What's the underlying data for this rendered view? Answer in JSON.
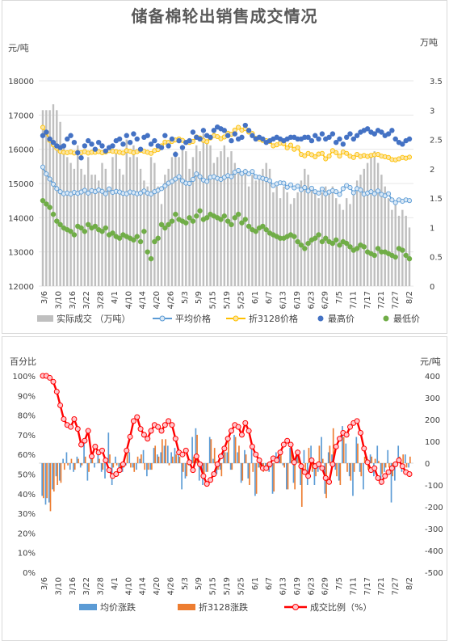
{
  "title": "储备棉轮出销售成交情况",
  "colors": {
    "volume": "#bfbfbf",
    "avg_price": "#5b9bd5",
    "avg_price_fill": "#dbe9f6",
    "adj_price": "#ffc000",
    "adj_price_fill": "#fbe5a6",
    "high": "#4472c4",
    "low": "#70ad47",
    "avg_change": "#5b9bd5",
    "adj_change": "#ed7d31",
    "ratio": "#ff0000",
    "ratio_fill": "#ffc7ce"
  },
  "chart_data": [
    {
      "type": "bar+line+scatter",
      "ylabel": "元/吨",
      "y2label": "万吨",
      "ylim": [
        12000,
        18000
      ],
      "y2lim": [
        0,
        3.5
      ],
      "yticks": [
        "12000",
        "13000",
        "14000",
        "15000",
        "16000",
        "17000",
        "18000"
      ],
      "y2ticks": [
        "0",
        "0.5",
        "1",
        "1.5",
        "2",
        "2.5",
        "3",
        "3.5"
      ],
      "xticks": [
        "3/6",
        "3/10",
        "3/16",
        "3/22",
        "3/28",
        "4/1",
        "4/10",
        "4/14",
        "4/20",
        "4/26",
        "5/3",
        "5/9",
        "5/15",
        "5/19",
        "5/25",
        "6/1",
        "6/7",
        "6/13",
        "6/19",
        "6/23",
        "6/29",
        "7/5",
        "7/11",
        "7/17",
        "7/21",
        "7/27",
        "8/2"
      ],
      "legend": [
        "实际成交 （万吨）",
        "平均价格",
        "折3128价格",
        "最高价",
        "最低价"
      ],
      "series": [
        {
          "name": "实际成交 （万吨）",
          "axis": "y2",
          "values": [
            3,
            3,
            3,
            3.1,
            3,
            2.8,
            2.4,
            2.2,
            2.1,
            2.0,
            2.4,
            2.0,
            1.9,
            2.2,
            1.9,
            1.9,
            1.8,
            2.1,
            2.0,
            1.7,
            2.2,
            2.3,
            2.0,
            1.9,
            2.5,
            2.2,
            2.4,
            2.2,
            2.0,
            1.8,
            1.7,
            2.2,
            2.1,
            1.7,
            1.4,
            1.9,
            2.0,
            2.2,
            2.3,
            2.2,
            2.4,
            2.3,
            2.0,
            2.2,
            2.4,
            2.3,
            2.6,
            2.5,
            2.4,
            2.1,
            2.2,
            2.3,
            2.4,
            2.2,
            2.3,
            2.1,
            2.0,
            1.9,
            2.0,
            1.7,
            1.9,
            1.8,
            1.9,
            2.0,
            2.1,
            2.0,
            1.6,
            1.7,
            1.5,
            1.7,
            1.6,
            1.4,
            1.5,
            1.6,
            1.8,
            2.0,
            1.9,
            1.7,
            1.6,
            1.5,
            1.6,
            1.7,
            1.6,
            1.7,
            1.5,
            1.4,
            1.3,
            1.5,
            1.4,
            1.6,
            1.8,
            1.9,
            2.0,
            2.1,
            2.2,
            2.3,
            2.1,
            1.9,
            1.7,
            1.5,
            1.3,
            1.4,
            1.2,
            1.3,
            1.2,
            1.0
          ]
        },
        {
          "name": "平均价格",
          "axis": "y",
          "values": [
            15480,
            15280,
            15130,
            14980,
            14850,
            14760,
            14700,
            14720,
            14690,
            14740,
            14710,
            14750,
            14800,
            14720,
            14790,
            14760,
            14810,
            14770,
            14700,
            14840,
            14740,
            14770,
            14750,
            14710,
            14700,
            14750,
            14730,
            14700,
            14720,
            14780,
            14720,
            14690,
            14760,
            14800,
            14850,
            14930,
            15010,
            15060,
            15130,
            15200,
            15080,
            15010,
            15000,
            15120,
            15280,
            15200,
            15100,
            15060,
            15180,
            15200,
            15150,
            15120,
            15180,
            15230,
            15200,
            15330,
            15380,
            15290,
            15350,
            15280,
            15350,
            15200,
            15180,
            15150,
            15120,
            15080,
            14940,
            14990,
            15020,
            15010,
            14890,
            14960,
            14870,
            14920,
            14820,
            14880,
            14780,
            14860,
            14760,
            14720,
            14840,
            14700,
            14750,
            14790,
            14760,
            14680,
            14850,
            14940,
            14880,
            14730,
            14850,
            14810,
            14690,
            14720,
            14760,
            14700,
            14780,
            14680,
            14640,
            14700,
            14520,
            14440,
            14520,
            14480,
            14520,
            14500
          ]
        },
        {
          "name": "折3128价格",
          "axis": "y",
          "values": [
            16640,
            16480,
            16260,
            16130,
            16030,
            15940,
            15910,
            15900,
            15920,
            15890,
            15910,
            15900,
            15930,
            15890,
            15910,
            15910,
            15930,
            15900,
            15920,
            15960,
            15940,
            15930,
            15910,
            15890,
            15960,
            15940,
            15900,
            15930,
            15970,
            15940,
            15910,
            15880,
            15960,
            15990,
            16100,
            16210,
            16200,
            16230,
            16270,
            16300,
            16260,
            16200,
            16200,
            16230,
            16360,
            16330,
            16260,
            16220,
            16330,
            16400,
            16370,
            16310,
            16360,
            16470,
            16440,
            16560,
            16640,
            16560,
            16600,
            16500,
            16460,
            16320,
            16300,
            16260,
            16250,
            16230,
            16100,
            16130,
            16180,
            16160,
            16040,
            16120,
            16000,
            16050,
            15850,
            15810,
            15880,
            15840,
            15780,
            15860,
            15880,
            15720,
            15800,
            15960,
            15900,
            15800,
            15920,
            15880,
            15800,
            15760,
            15850,
            15790,
            15820,
            15790,
            15820,
            15840,
            15850,
            15800,
            15780,
            15760,
            15700,
            15690,
            15720,
            15760,
            15740,
            15770
          ]
        },
        {
          "name": "最高价",
          "axis": "y",
          "type": "scatter",
          "values": [
            16400,
            16500,
            16300,
            16200,
            16100,
            16050,
            16100,
            16300,
            16400,
            16200,
            15900,
            15750,
            16100,
            16250,
            16150,
            16000,
            16200,
            16100,
            15950,
            16050,
            16100,
            16250,
            16300,
            16150,
            16400,
            16200,
            16450,
            16300,
            16000,
            16350,
            16400,
            16150,
            16250,
            16100,
            16050,
            16400,
            16100,
            16300,
            15850,
            16250,
            16050,
            16200,
            16250,
            16500,
            16350,
            16300,
            16550,
            16400,
            16350,
            16550,
            16650,
            16600,
            16550,
            16400,
            16250,
            16450,
            16300,
            16350,
            16700,
            16550,
            16400,
            16300,
            16350,
            16300,
            16200,
            16250,
            16300,
            16350,
            16300,
            16250,
            16300,
            16350,
            16350,
            16300,
            16300,
            16350,
            16350,
            16250,
            16400,
            16300,
            16450,
            16300,
            16350,
            16450,
            16200,
            16300,
            16150,
            16350,
            16450,
            16300,
            16400,
            16500,
            16550,
            16600,
            16500,
            16450,
            16550,
            16500,
            16400,
            16450,
            16550,
            16300,
            16200,
            16150,
            16250,
            16300
          ]
        },
        {
          "name": "最低价",
          "axis": "y",
          "type": "scatter",
          "values": [
            14500,
            14400,
            14300,
            14100,
            13900,
            13800,
            13700,
            13650,
            13600,
            13500,
            13750,
            13700,
            13600,
            13800,
            13700,
            13750,
            13650,
            13600,
            13700,
            13500,
            13550,
            13450,
            13400,
            13500,
            13450,
            13400,
            13350,
            13450,
            13300,
            13600,
            13000,
            12800,
            13300,
            13400,
            13800,
            13700,
            13800,
            13900,
            14100,
            13950,
            13900,
            13850,
            14000,
            13900,
            14050,
            14200,
            13950,
            14000,
            14100,
            14050,
            14000,
            13950,
            14050,
            13900,
            13800,
            14000,
            14100,
            13850,
            13950,
            13750,
            13650,
            13600,
            13700,
            13750,
            13650,
            13550,
            13500,
            13450,
            13400,
            13400,
            13450,
            13500,
            13450,
            13300,
            13200,
            13100,
            13250,
            13350,
            13400,
            13500,
            13300,
            13400,
            13300,
            13250,
            13350,
            13200,
            13300,
            13250,
            13150,
            13050,
            13100,
            13200,
            13150,
            13000,
            12950,
            12900,
            13100,
            13000,
            13000,
            12950,
            12900,
            12850,
            13100,
            13050,
            12900,
            12800
          ]
        }
      ]
    },
    {
      "type": "bar+line",
      "ylabel": "百分比",
      "y2label": "元/吨",
      "ylim": [
        0,
        100
      ],
      "y2lim": [
        -500,
        400
      ],
      "yticks": [
        "0%",
        "10%",
        "20%",
        "30%",
        "40%",
        "50%",
        "60%",
        "70%",
        "80%",
        "90%",
        "100%"
      ],
      "y2ticks": [
        "-500",
        "-400",
        "-300",
        "-200",
        "-100",
        "0",
        "100",
        "200",
        "300",
        "400"
      ],
      "xticks": [
        "3/6",
        "3/10",
        "3/16",
        "3/22",
        "3/28",
        "4/1",
        "4/10",
        "4/14",
        "4/20",
        "4/26",
        "5/3",
        "5/9",
        "5/15",
        "5/19",
        "5/25",
        "6/1",
        "6/7",
        "6/13",
        "6/19",
        "6/23",
        "6/29",
        "7/5",
        "7/11",
        "7/17",
        "7/21",
        "7/27",
        "8/2"
      ],
      "legend": [
        "均价涨跌",
        "折3128涨跌",
        "成交比例（%）"
      ],
      "series": [
        {
          "name": "均价涨跌",
          "axis": "y2",
          "values": [
            -150,
            -190,
            -180,
            -120,
            -60,
            -80,
            20,
            50,
            -30,
            -40,
            30,
            -20,
            100,
            -80,
            40,
            -20,
            50,
            -40,
            -70,
            140,
            -100,
            30,
            -20,
            -40,
            -10,
            50,
            -20,
            -30,
            20,
            60,
            -60,
            -30,
            70,
            40,
            50,
            80,
            80,
            50,
            70,
            70,
            -120,
            -70,
            -10,
            120,
            160,
            -80,
            -100,
            -40,
            120,
            20,
            -50,
            -30,
            60,
            50,
            -30,
            130,
            50,
            -90,
            60,
            -70,
            70,
            -150,
            -20,
            -30,
            -30,
            -40,
            -140,
            50,
            30,
            -10,
            -120,
            70,
            -90,
            50,
            -100,
            60,
            -100,
            80,
            -100,
            -40,
            120,
            -140,
            50,
            40,
            -30,
            -80,
            170,
            90,
            -60,
            -150,
            120,
            -40,
            -120,
            30,
            40,
            -60,
            80,
            -100,
            -40,
            60,
            -180,
            -80,
            80,
            -40,
            40,
            -20
          ]
        },
        {
          "name": "折3128涨跌",
          "axis": "y2",
          "values": [
            -160,
            -160,
            -220,
            -130,
            -100,
            -90,
            -30,
            -10,
            20,
            -30,
            20,
            -10,
            30,
            -40,
            20,
            0,
            20,
            -30,
            20,
            40,
            -20,
            -10,
            -20,
            -20,
            70,
            -20,
            -40,
            30,
            40,
            -30,
            -30,
            -30,
            80,
            30,
            110,
            110,
            -10,
            30,
            40,
            30,
            -40,
            -60,
            0,
            30,
            130,
            -30,
            -70,
            -40,
            110,
            70,
            -30,
            -60,
            50,
            110,
            -30,
            120,
            80,
            -80,
            40,
            -100,
            -40,
            -140,
            -20,
            -40,
            -10,
            -20,
            -130,
            30,
            50,
            -20,
            -120,
            80,
            -120,
            50,
            -200,
            -40,
            70,
            -40,
            -60,
            80,
            20,
            -160,
            80,
            160,
            -60,
            -100,
            120,
            -40,
            -80,
            -40,
            90,
            -60,
            30,
            -30,
            30,
            20,
            10,
            -50,
            -20,
            -20,
            -60,
            -10,
            30,
            40,
            -20,
            30
          ]
        },
        {
          "name": "成交比例（%）",
          "axis": "y",
          "values": [
            100,
            100,
            99,
            97,
            92,
            85,
            78,
            75,
            74,
            78,
            73,
            65,
            67,
            72,
            59,
            64,
            61,
            62,
            57,
            52,
            49,
            50,
            52,
            55,
            62,
            69,
            77,
            79,
            73,
            70,
            68,
            72,
            75,
            74,
            72,
            75,
            77,
            75,
            68,
            61,
            60,
            62,
            56,
            52,
            59,
            55,
            49,
            45,
            47,
            50,
            55,
            59,
            63,
            68,
            72,
            75,
            74,
            70,
            76,
            72,
            64,
            60,
            57,
            53,
            53,
            55,
            58,
            57,
            61,
            65,
            67,
            65,
            56,
            61,
            54,
            51,
            49,
            57,
            54,
            55,
            53,
            48,
            46,
            55,
            64,
            68,
            71,
            70,
            74,
            76,
            77,
            71,
            63,
            56,
            52,
            53,
            48,
            46,
            49,
            51,
            53,
            55,
            57,
            54,
            51,
            50
          ]
        }
      ]
    }
  ]
}
